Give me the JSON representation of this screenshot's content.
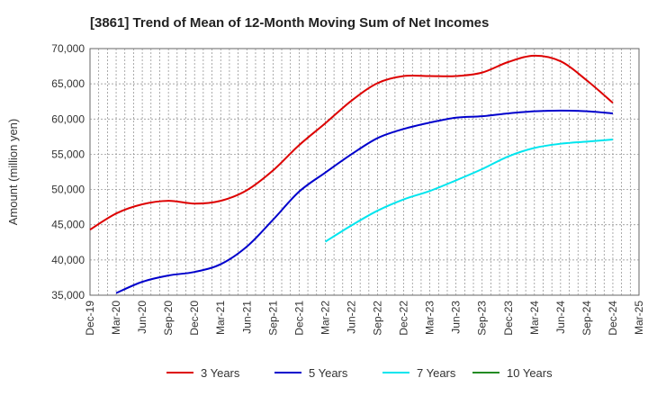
{
  "chart_data": {
    "type": "line",
    "title": "[3861]  Trend of Mean of 12-Month Moving Sum of Net Incomes",
    "xlabel": "",
    "ylabel": "Amount (million yen)",
    "ylim": [
      35000,
      70000
    ],
    "yticks": [
      35000,
      40000,
      45000,
      50000,
      55000,
      60000,
      65000,
      70000
    ],
    "ytick_labels": [
      "35,000",
      "40,000",
      "45,000",
      "50,000",
      "55,000",
      "60,000",
      "65,000",
      "70,000"
    ],
    "xticks": [
      "Dec-19",
      "Mar-20",
      "Jun-20",
      "Sep-20",
      "Dec-20",
      "Mar-21",
      "Jun-21",
      "Sep-21",
      "Dec-21",
      "Mar-22",
      "Jun-22",
      "Sep-22",
      "Dec-22",
      "Mar-23",
      "Jun-23",
      "Sep-23",
      "Dec-23",
      "Mar-24",
      "Jun-24",
      "Sep-24",
      "Dec-24",
      "Mar-25"
    ],
    "grid": true,
    "legend_position": "bottom",
    "series": [
      {
        "name": "3 Years",
        "color": "#dd0000",
        "points": [
          [
            "Dec-19",
            44300
          ],
          [
            "Mar-20",
            46600
          ],
          [
            "Jun-20",
            47900
          ],
          [
            "Sep-20",
            48400
          ],
          [
            "Dec-20",
            48000
          ],
          [
            "Mar-21",
            48400
          ],
          [
            "Jun-21",
            49900
          ],
          [
            "Sep-21",
            52700
          ],
          [
            "Dec-21",
            56300
          ],
          [
            "Mar-22",
            59400
          ],
          [
            "Jun-22",
            62600
          ],
          [
            "Sep-22",
            65100
          ],
          [
            "Dec-22",
            66100
          ],
          [
            "Mar-23",
            66100
          ],
          [
            "Jun-23",
            66100
          ],
          [
            "Sep-23",
            66600
          ],
          [
            "Dec-23",
            68100
          ],
          [
            "Mar-24",
            69000
          ],
          [
            "Jun-24",
            68200
          ],
          [
            "Sep-24",
            65500
          ],
          [
            "Dec-24",
            62300
          ]
        ]
      },
      {
        "name": "5 Years",
        "color": "#0000cc",
        "points": [
          [
            "Mar-20",
            35300
          ],
          [
            "Jun-20",
            36900
          ],
          [
            "Sep-20",
            37800
          ],
          [
            "Dec-20",
            38300
          ],
          [
            "Mar-21",
            39400
          ],
          [
            "Jun-21",
            41900
          ],
          [
            "Sep-21",
            45700
          ],
          [
            "Dec-21",
            49700
          ],
          [
            "Mar-22",
            52400
          ],
          [
            "Jun-22",
            55000
          ],
          [
            "Sep-22",
            57300
          ],
          [
            "Dec-22",
            58600
          ],
          [
            "Mar-23",
            59500
          ],
          [
            "Jun-23",
            60200
          ],
          [
            "Sep-23",
            60400
          ],
          [
            "Dec-23",
            60800
          ],
          [
            "Mar-24",
            61100
          ],
          [
            "Jun-24",
            61200
          ],
          [
            "Sep-24",
            61100
          ],
          [
            "Dec-24",
            60800
          ]
        ]
      },
      {
        "name": "7 Years",
        "color": "#00e5ee",
        "points": [
          [
            "Mar-22",
            42600
          ],
          [
            "Jun-22",
            44900
          ],
          [
            "Sep-22",
            47000
          ],
          [
            "Dec-22",
            48600
          ],
          [
            "Mar-23",
            49800
          ],
          [
            "Jun-23",
            51300
          ],
          [
            "Sep-23",
            52900
          ],
          [
            "Dec-23",
            54700
          ],
          [
            "Mar-24",
            55900
          ],
          [
            "Jun-24",
            56500
          ],
          [
            "Sep-24",
            56800
          ],
          [
            "Dec-24",
            57100
          ]
        ]
      },
      {
        "name": "10 Years",
        "color": "#228b22",
        "points": []
      }
    ]
  }
}
